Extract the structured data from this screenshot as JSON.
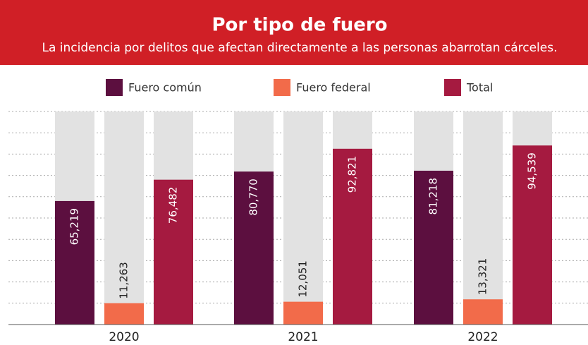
{
  "chart_data": {
    "type": "bar",
    "title": "Por tipo de fuero",
    "subtitle": "La incidencia por delitos que afectan directamente a las personas abarrotan cárceles.",
    "categories": [
      "2020",
      "2021",
      "2022"
    ],
    "series": [
      {
        "name": "Fuero común",
        "color": "#5c0f3f",
        "values": [
          65219,
          80770,
          81218
        ],
        "value_labels": [
          "65,219",
          "80,770",
          "81,218"
        ]
      },
      {
        "name": "Fuero federal",
        "color": "#f26b4a",
        "values": [
          11263,
          12051,
          13321
        ],
        "value_labels": [
          "11,263",
          "12,051",
          "13,321"
        ]
      },
      {
        "name": "Total",
        "color": "#a51a40",
        "values": [
          76482,
          92821,
          94539
        ],
        "value_labels": [
          "76,482",
          "92,821",
          "94,539"
        ]
      }
    ],
    "ylim": [
      0,
      112500
    ]
  }
}
